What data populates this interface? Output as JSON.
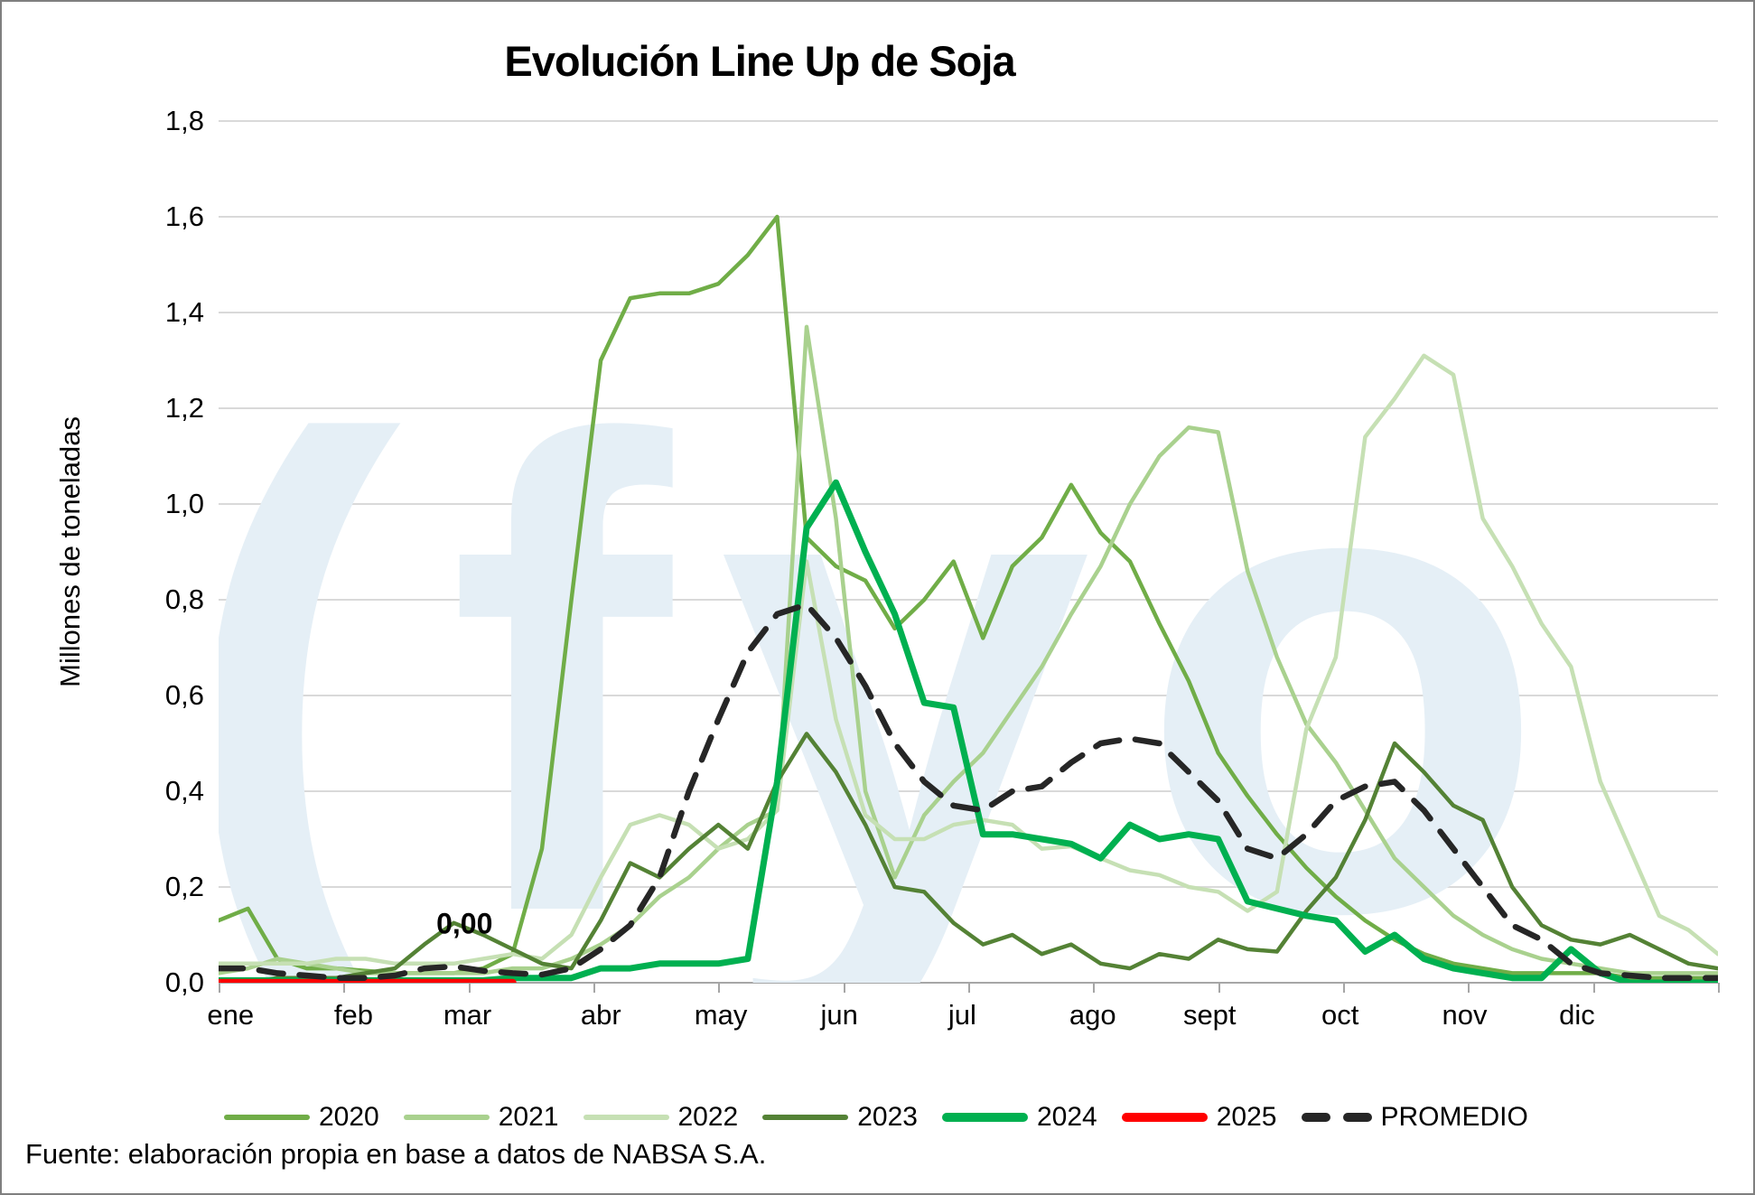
{
  "title": "Evolución Line Up de Soja",
  "y_axis": {
    "title": "Millones de toneladas",
    "tick_labels": [
      "0,0",
      "0,2",
      "0,4",
      "0,6",
      "0,8",
      "1,0",
      "1,2",
      "1,4",
      "1,6",
      "1,8"
    ],
    "min": 0,
    "max": 1.8,
    "step": 0.2
  },
  "x_axis": {
    "labels": [
      "ene",
      "feb",
      "mar",
      "abr",
      "may",
      "jun",
      "jul",
      "ago",
      "sept",
      "oct",
      "nov",
      "dic"
    ],
    "label_pos_pct": [
      0.8,
      9.0,
      16.6,
      25.5,
      33.5,
      41.4,
      49.6,
      58.3,
      66.1,
      74.8,
      83.1,
      90.6
    ],
    "n_ticks": 13
  },
  "watermark": "(fyo",
  "watermark_color": "#e5eff6",
  "source": "Fuente: elaboración propia en base a datos de NABSA S.A.",
  "grid_color": "#d9d9d9",
  "axis_color": "#a6a6a6",
  "chart_data": {
    "type": "line",
    "x_unit": "semana (52 puntos, ene-dic)",
    "ylim": [
      0,
      1.8
    ],
    "grid": true,
    "legend_position": "bottom",
    "data_label": {
      "series": "2025",
      "text": "0,00",
      "x_pct": 16.4,
      "y_pct": 93.2
    },
    "series": [
      {
        "name": "2020",
        "color": "#70ad47",
        "width": 4.5,
        "dashed": false,
        "values": [
          0.13,
          0.155,
          0.05,
          0.03,
          0.03,
          0.025,
          0.02,
          0.02,
          0.02,
          0.03,
          0.06,
          0.28,
          0.8,
          1.3,
          1.43,
          1.44,
          1.44,
          1.46,
          1.52,
          1.6,
          0.93,
          0.87,
          0.84,
          0.74,
          0.8,
          0.88,
          0.72,
          0.87,
          0.93,
          1.04,
          0.94,
          0.88,
          0.75,
          0.63,
          0.48,
          0.39,
          0.31,
          0.24,
          0.18,
          0.13,
          0.09,
          0.06,
          0.04,
          0.03,
          0.02,
          0.02,
          0.02,
          0.02,
          0.01,
          0.01,
          0.01,
          0.01
        ]
      },
      {
        "name": "2021",
        "color": "#a9d18e",
        "width": 4.5,
        "dashed": false,
        "values": [
          0.02,
          0.03,
          0.05,
          0.04,
          0.03,
          0.02,
          0.02,
          0.02,
          0.02,
          0.02,
          0.03,
          0.03,
          0.05,
          0.08,
          0.12,
          0.18,
          0.22,
          0.28,
          0.33,
          0.36,
          1.37,
          0.97,
          0.4,
          0.22,
          0.35,
          0.42,
          0.48,
          0.57,
          0.66,
          0.77,
          0.87,
          1.0,
          1.1,
          1.16,
          1.15,
          0.86,
          0.68,
          0.54,
          0.46,
          0.36,
          0.26,
          0.2,
          0.14,
          0.1,
          0.07,
          0.05,
          0.04,
          0.03,
          0.02,
          0.02,
          0.02,
          0.02
        ]
      },
      {
        "name": "2022",
        "color": "#c6e0b4",
        "width": 4.5,
        "dashed": false,
        "values": [
          0.04,
          0.04,
          0.04,
          0.04,
          0.05,
          0.05,
          0.04,
          0.04,
          0.04,
          0.05,
          0.06,
          0.05,
          0.1,
          0.22,
          0.33,
          0.35,
          0.33,
          0.28,
          0.3,
          0.36,
          0.88,
          0.55,
          0.35,
          0.3,
          0.3,
          0.33,
          0.34,
          0.33,
          0.28,
          0.285,
          0.26,
          0.235,
          0.225,
          0.2,
          0.19,
          0.15,
          0.19,
          0.53,
          0.68,
          1.14,
          1.22,
          1.31,
          1.27,
          0.97,
          0.87,
          0.75,
          0.66,
          0.42,
          0.28,
          0.14,
          0.11,
          0.06
        ]
      },
      {
        "name": "2023",
        "color": "#548235",
        "width": 4.5,
        "dashed": false,
        "values": [
          0.0,
          0.0,
          0.01,
          0.01,
          0.01,
          0.02,
          0.03,
          0.08,
          0.125,
          0.1,
          0.07,
          0.04,
          0.03,
          0.13,
          0.25,
          0.22,
          0.28,
          0.33,
          0.28,
          0.42,
          0.52,
          0.44,
          0.33,
          0.2,
          0.19,
          0.125,
          0.08,
          0.1,
          0.06,
          0.08,
          0.04,
          0.03,
          0.06,
          0.05,
          0.09,
          0.07,
          0.065,
          0.15,
          0.22,
          0.34,
          0.5,
          0.44,
          0.37,
          0.34,
          0.2,
          0.12,
          0.09,
          0.08,
          0.1,
          0.07,
          0.04,
          0.03
        ]
      },
      {
        "name": "2024",
        "color": "#00b050",
        "width": 7,
        "dashed": false,
        "values": [
          0.005,
          0.005,
          0.005,
          0.005,
          0.005,
          0.005,
          0.005,
          0.005,
          0.005,
          0.005,
          0.01,
          0.01,
          0.01,
          0.03,
          0.03,
          0.04,
          0.04,
          0.04,
          0.05,
          0.42,
          0.95,
          1.045,
          0.9,
          0.77,
          0.585,
          0.575,
          0.31,
          0.31,
          0.3,
          0.29,
          0.26,
          0.33,
          0.3,
          0.31,
          0.3,
          0.17,
          0.155,
          0.14,
          0.13,
          0.065,
          0.1,
          0.05,
          0.03,
          0.02,
          0.01,
          0.01,
          0.07,
          0.02,
          0.0,
          0.0,
          0.0,
          0.0
        ]
      },
      {
        "name": "2025",
        "color": "#ff0000",
        "width": 8.5,
        "dashed": false,
        "values": [
          0,
          0,
          0,
          0,
          0,
          0,
          0,
          0,
          0,
          0,
          0
        ]
      },
      {
        "name": "PROMEDIO",
        "color": "#262626",
        "width": 6.5,
        "dashed": true,
        "values": [
          0.03,
          0.03,
          0.02,
          0.015,
          0.01,
          0.01,
          0.015,
          0.03,
          0.034,
          0.025,
          0.02,
          0.017,
          0.03,
          0.07,
          0.12,
          0.22,
          0.4,
          0.55,
          0.69,
          0.77,
          0.79,
          0.72,
          0.62,
          0.5,
          0.42,
          0.37,
          0.36,
          0.4,
          0.41,
          0.46,
          0.5,
          0.51,
          0.5,
          0.44,
          0.38,
          0.28,
          0.26,
          0.31,
          0.38,
          0.41,
          0.42,
          0.36,
          0.28,
          0.2,
          0.12,
          0.09,
          0.04,
          0.02,
          0.015,
          0.01,
          0.01,
          0.01
        ]
      }
    ]
  },
  "legend": {
    "items": [
      {
        "label": "2020",
        "color": "#70ad47",
        "thick": false,
        "dashed": false
      },
      {
        "label": "2021",
        "color": "#a9d18e",
        "thick": false,
        "dashed": false
      },
      {
        "label": "2022",
        "color": "#c6e0b4",
        "thick": false,
        "dashed": false
      },
      {
        "label": "2023",
        "color": "#548235",
        "thick": false,
        "dashed": false
      },
      {
        "label": "2024",
        "color": "#00b050",
        "thick": true,
        "dashed": false
      },
      {
        "label": "2025",
        "color": "#ff0000",
        "thick": true,
        "dashed": false
      },
      {
        "label": "PROMEDIO",
        "color": "#262626",
        "thick": true,
        "dashed": true
      }
    ]
  }
}
